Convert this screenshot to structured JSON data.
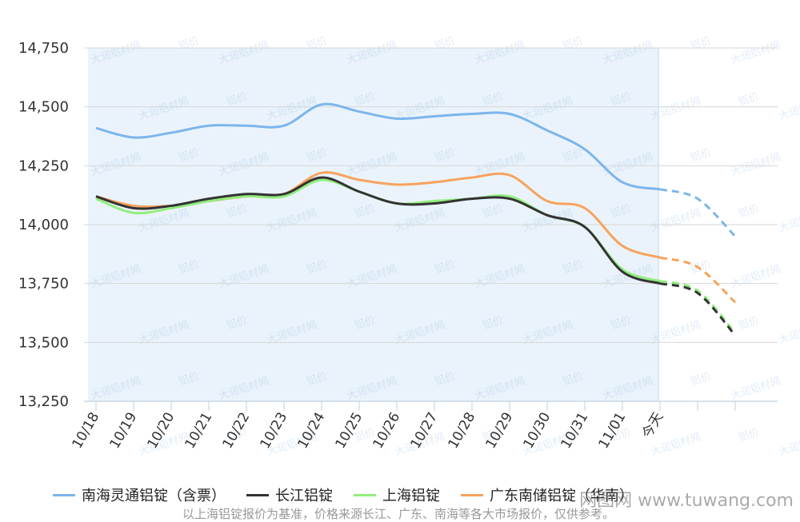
{
  "chart_data": {
    "type": "line",
    "categories": [
      "10/18",
      "10/19",
      "10/20",
      "10/21",
      "10/22",
      "10/23",
      "10/24",
      "10/25",
      "10/26",
      "10/27",
      "10/28",
      "10/29",
      "10/30",
      "10/31",
      "11/01",
      "今天",
      "",
      ""
    ],
    "y_ticks": [
      "14,750",
      "14,500",
      "14,250",
      "14,000",
      "13,750",
      "13,500",
      "13,250"
    ],
    "ylim": [
      13250,
      14750
    ],
    "forecast_from_index": 15,
    "grid": true,
    "legend_position": "bottom",
    "series": [
      {
        "name": "南海灵通铝锭（含票）",
        "color": "#7cb5ec",
        "values": [
          14410,
          14370,
          14390,
          14420,
          14420,
          14420,
          14510,
          14480,
          14450,
          14460,
          14470,
          14470,
          14400,
          14320,
          14180,
          14150,
          14110,
          13950
        ]
      },
      {
        "name": "长江铝锭",
        "color": "#333333",
        "values": [
          14120,
          14070,
          14080,
          14110,
          14130,
          14130,
          14200,
          14140,
          14090,
          14090,
          14110,
          14110,
          14040,
          13990,
          13800,
          13750,
          13710,
          13530
        ]
      },
      {
        "name": "上海铝锭",
        "color": "#90ed7d",
        "values": [
          14110,
          14050,
          14070,
          14100,
          14120,
          14120,
          14190,
          14140,
          14090,
          14100,
          14110,
          14120,
          14040,
          13990,
          13810,
          13760,
          13720,
          13540
        ]
      },
      {
        "name": "广东南储铝锭（华南）",
        "color": "#f7a35c",
        "values": [
          14120,
          14080,
          14080,
          14100,
          14120,
          14130,
          14220,
          14190,
          14170,
          14180,
          14200,
          14210,
          14100,
          14070,
          13910,
          13860,
          13820,
          13670
        ]
      }
    ]
  },
  "legend": {
    "items": [
      "南海灵通铝锭（含票）",
      "长江铝锭",
      "上海铝锭",
      "广东南储铝锭（华南）"
    ]
  },
  "watermarks": {
    "brand": "大润铝材网",
    "tag": "铝价"
  },
  "site_watermark": "网图网 www.tuwang.com",
  "footnote": "以上海铝锭报价为基准，价格来源长江、广东、南海等各大市场报价，仅供参考。"
}
